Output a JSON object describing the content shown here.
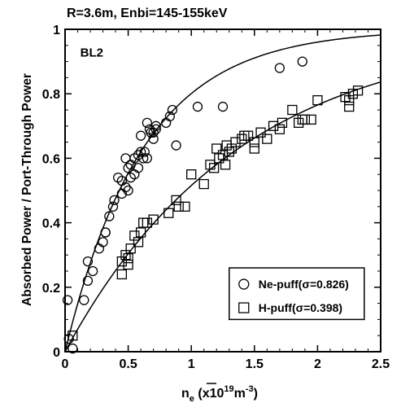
{
  "chart_data": {
    "type": "scatter",
    "title": "R=3.6m, Enbi=145-155keV",
    "annotation": "BL2",
    "xlabel_main": "n",
    "xlabel_sub": "e",
    "xlabel_unit": " (x10",
    "xlabel_exp": "19",
    "xlabel_unit2": "m",
    "xlabel_exp2": "-3",
    "xlabel_unit3": ")",
    "ylabel": "Absorbed Power / Port-Through Power",
    "xlim": [
      0,
      2.5
    ],
    "ylim": [
      0,
      1
    ],
    "xticks": [
      "0",
      "0.5",
      "1",
      "1.5",
      "2",
      "2.5"
    ],
    "yticks": [
      "0",
      "0.2",
      "0.4",
      "0.6",
      "0.8",
      "1"
    ],
    "grid": false,
    "legend_position": "bottom-right",
    "series": [
      {
        "name": "Ne-puff(σ=0.826)",
        "marker": "circle",
        "fit_sigma": 0.826,
        "points": [
          [
            0.02,
            0.16
          ],
          [
            0.03,
            0.04
          ],
          [
            0.06,
            0.01
          ],
          [
            0.15,
            0.16
          ],
          [
            0.18,
            0.22
          ],
          [
            0.18,
            0.28
          ],
          [
            0.22,
            0.25
          ],
          [
            0.27,
            0.32
          ],
          [
            0.3,
            0.34
          ],
          [
            0.32,
            0.37
          ],
          [
            0.32,
            0.37
          ],
          [
            0.35,
            0.42
          ],
          [
            0.38,
            0.45
          ],
          [
            0.39,
            0.47
          ],
          [
            0.42,
            0.54
          ],
          [
            0.45,
            0.53
          ],
          [
            0.45,
            0.49
          ],
          [
            0.48,
            0.6
          ],
          [
            0.48,
            0.51
          ],
          [
            0.5,
            0.5
          ],
          [
            0.5,
            0.57
          ],
          [
            0.52,
            0.54
          ],
          [
            0.52,
            0.58
          ],
          [
            0.55,
            0.55
          ],
          [
            0.55,
            0.6
          ],
          [
            0.58,
            0.61
          ],
          [
            0.58,
            0.57
          ],
          [
            0.6,
            0.62
          ],
          [
            0.6,
            0.67
          ],
          [
            0.62,
            0.6
          ],
          [
            0.63,
            0.62
          ],
          [
            0.65,
            0.6
          ],
          [
            0.65,
            0.71
          ],
          [
            0.67,
            0.69
          ],
          [
            0.68,
            0.68
          ],
          [
            0.7,
            0.68
          ],
          [
            0.7,
            0.66
          ],
          [
            0.72,
            0.69
          ],
          [
            0.72,
            0.7
          ],
          [
            0.8,
            0.71
          ],
          [
            0.83,
            0.73
          ],
          [
            0.85,
            0.75
          ],
          [
            0.88,
            0.64
          ],
          [
            1.05,
            0.76
          ],
          [
            1.25,
            0.76
          ],
          [
            1.7,
            0.88
          ],
          [
            1.88,
            0.9
          ]
        ]
      },
      {
        "name": "H-puff(σ=0.398)",
        "marker": "square",
        "fit_sigma": 0.398,
        "points": [
          [
            0.06,
            0.05
          ],
          [
            0.45,
            0.28
          ],
          [
            0.45,
            0.24
          ],
          [
            0.48,
            0.3
          ],
          [
            0.5,
            0.29
          ],
          [
            0.5,
            0.27
          ],
          [
            0.52,
            0.32
          ],
          [
            0.55,
            0.36
          ],
          [
            0.58,
            0.34
          ],
          [
            0.6,
            0.37
          ],
          [
            0.62,
            0.4
          ],
          [
            0.65,
            0.4
          ],
          [
            0.7,
            0.41
          ],
          [
            0.82,
            0.43
          ],
          [
            0.88,
            0.47
          ],
          [
            0.9,
            0.45
          ],
          [
            0.95,
            0.45
          ],
          [
            1.0,
            0.55
          ],
          [
            1.1,
            0.52
          ],
          [
            1.15,
            0.58
          ],
          [
            1.18,
            0.57
          ],
          [
            1.2,
            0.63
          ],
          [
            1.22,
            0.6
          ],
          [
            1.25,
            0.61
          ],
          [
            1.27,
            0.58
          ],
          [
            1.28,
            0.64
          ],
          [
            1.3,
            0.62
          ],
          [
            1.32,
            0.63
          ],
          [
            1.35,
            0.65
          ],
          [
            1.4,
            0.66
          ],
          [
            1.42,
            0.67
          ],
          [
            1.45,
            0.67
          ],
          [
            1.5,
            0.63
          ],
          [
            1.5,
            0.65
          ],
          [
            1.55,
            0.68
          ],
          [
            1.6,
            0.66
          ],
          [
            1.65,
            0.7
          ],
          [
            1.7,
            0.69
          ],
          [
            1.72,
            0.71
          ],
          [
            1.8,
            0.75
          ],
          [
            1.85,
            0.71
          ],
          [
            1.88,
            0.72
          ],
          [
            1.9,
            0.72
          ],
          [
            1.95,
            0.72
          ],
          [
            2.0,
            0.78
          ],
          [
            2.22,
            0.79
          ],
          [
            2.25,
            0.78
          ],
          [
            2.28,
            0.8
          ],
          [
            2.32,
            0.81
          ],
          [
            2.25,
            0.76
          ]
        ]
      }
    ]
  }
}
